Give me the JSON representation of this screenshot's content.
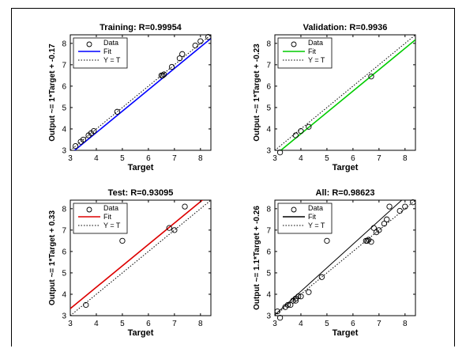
{
  "chart_data": [
    {
      "type": "scatter",
      "title": "Training: R=0.99954",
      "xlabel": "Target",
      "ylabel": "Output ~= 1*Target + -0.17",
      "xlim": [
        3,
        8.4
      ],
      "ylim": [
        3,
        8.4
      ],
      "xticks": [
        "3",
        "4",
        "5",
        "6",
        "7",
        "8"
      ],
      "yticks": [
        "3",
        "4",
        "5",
        "6",
        "7",
        "8"
      ],
      "grid": false,
      "legend": {
        "position": "top-left",
        "labels": [
          "Data",
          "Fit",
          "Y = T"
        ]
      },
      "fit_color": "#0000ff",
      "fit_line": {
        "slope": 1.0,
        "intercept": -0.17
      },
      "series": [
        {
          "name": "Data",
          "points": [
            [
              3.2,
              3.2
            ],
            [
              3.4,
              3.4
            ],
            [
              3.5,
              3.5
            ],
            [
              3.7,
              3.7
            ],
            [
              3.8,
              3.8
            ],
            [
              3.9,
              3.9
            ],
            [
              4.8,
              4.8
            ],
            [
              6.5,
              6.5
            ],
            [
              6.6,
              6.55
            ],
            [
              6.55,
              6.5
            ],
            [
              6.9,
              6.9
            ],
            [
              7.2,
              7.3
            ],
            [
              7.3,
              7.5
            ],
            [
              7.8,
              7.9
            ],
            [
              8.0,
              8.1
            ],
            [
              8.3,
              8.3
            ]
          ]
        }
      ]
    },
    {
      "type": "scatter",
      "title": "Validation: R=0.9936",
      "xlabel": "Target",
      "ylabel": "Output ~= 1*Target + -0.23",
      "xlim": [
        3,
        8.4
      ],
      "ylim": [
        3,
        8.4
      ],
      "xticks": [
        "3",
        "4",
        "5",
        "6",
        "7",
        "8"
      ],
      "yticks": [
        "3",
        "4",
        "5",
        "6",
        "7",
        "8"
      ],
      "grid": false,
      "legend": {
        "position": "top-left",
        "labels": [
          "Data",
          "Fit",
          "Y = T"
        ]
      },
      "fit_color": "#00cc00",
      "fit_line": {
        "slope": 1.0,
        "intercept": -0.23
      },
      "series": [
        {
          "name": "Data",
          "points": [
            [
              3.2,
              2.9
            ],
            [
              3.8,
              3.7
            ],
            [
              4.0,
              3.9
            ],
            [
              4.3,
              4.1
            ],
            [
              6.7,
              6.45
            ]
          ]
        }
      ]
    },
    {
      "type": "scatter",
      "title": "Test: R=0.93095",
      "xlabel": "Target",
      "ylabel": "Output ~= 1*Target + 0.33",
      "xlim": [
        3,
        8.4
      ],
      "ylim": [
        3,
        8.4
      ],
      "xticks": [
        "3",
        "4",
        "5",
        "6",
        "7",
        "8"
      ],
      "yticks": [
        "3",
        "4",
        "5",
        "6",
        "7",
        "8"
      ],
      "grid": false,
      "legend": {
        "position": "top-left",
        "labels": [
          "Data",
          "Fit",
          "Y = T"
        ]
      },
      "fit_color": "#dd0000",
      "fit_line": {
        "slope": 1.0,
        "intercept": 0.33
      },
      "series": [
        {
          "name": "Data",
          "points": [
            [
              3.6,
              3.5
            ],
            [
              5.0,
              6.5
            ],
            [
              6.8,
              7.1
            ],
            [
              7.0,
              7.0
            ],
            [
              7.4,
              8.1
            ]
          ]
        }
      ]
    },
    {
      "type": "scatter",
      "title": "All: R=0.98623",
      "xlabel": "Target",
      "ylabel": "Output ~= 1.1*Target + -0.26",
      "xlim": [
        3,
        8.4
      ],
      "ylim": [
        3,
        8.4
      ],
      "xticks": [
        "3",
        "4",
        "5",
        "6",
        "7",
        "8"
      ],
      "yticks": [
        "3",
        "4",
        "5",
        "6",
        "7",
        "8"
      ],
      "grid": false,
      "legend": {
        "position": "top-left",
        "labels": [
          "Data",
          "Fit",
          "Y = T"
        ]
      },
      "fit_color": "#000000",
      "fit_line": {
        "slope": 1.1,
        "intercept": -0.26
      },
      "series": [
        {
          "name": "Data",
          "points": [
            [
              3.1,
              3.2
            ],
            [
              3.2,
              2.9
            ],
            [
              3.4,
              3.4
            ],
            [
              3.5,
              3.5
            ],
            [
              3.6,
              3.5
            ],
            [
              3.7,
              3.7
            ],
            [
              3.8,
              3.7
            ],
            [
              3.8,
              3.8
            ],
            [
              3.9,
              3.9
            ],
            [
              4.0,
              3.9
            ],
            [
              4.3,
              4.1
            ],
            [
              4.8,
              4.8
            ],
            [
              5.0,
              6.5
            ],
            [
              6.5,
              6.5
            ],
            [
              6.55,
              6.5
            ],
            [
              6.6,
              6.55
            ],
            [
              6.7,
              6.45
            ],
            [
              6.8,
              7.1
            ],
            [
              6.9,
              6.9
            ],
            [
              7.0,
              7.0
            ],
            [
              7.2,
              7.3
            ],
            [
              7.3,
              7.5
            ],
            [
              7.4,
              8.1
            ],
            [
              7.8,
              7.9
            ],
            [
              8.0,
              8.1
            ],
            [
              8.3,
              8.3
            ]
          ]
        }
      ]
    }
  ]
}
